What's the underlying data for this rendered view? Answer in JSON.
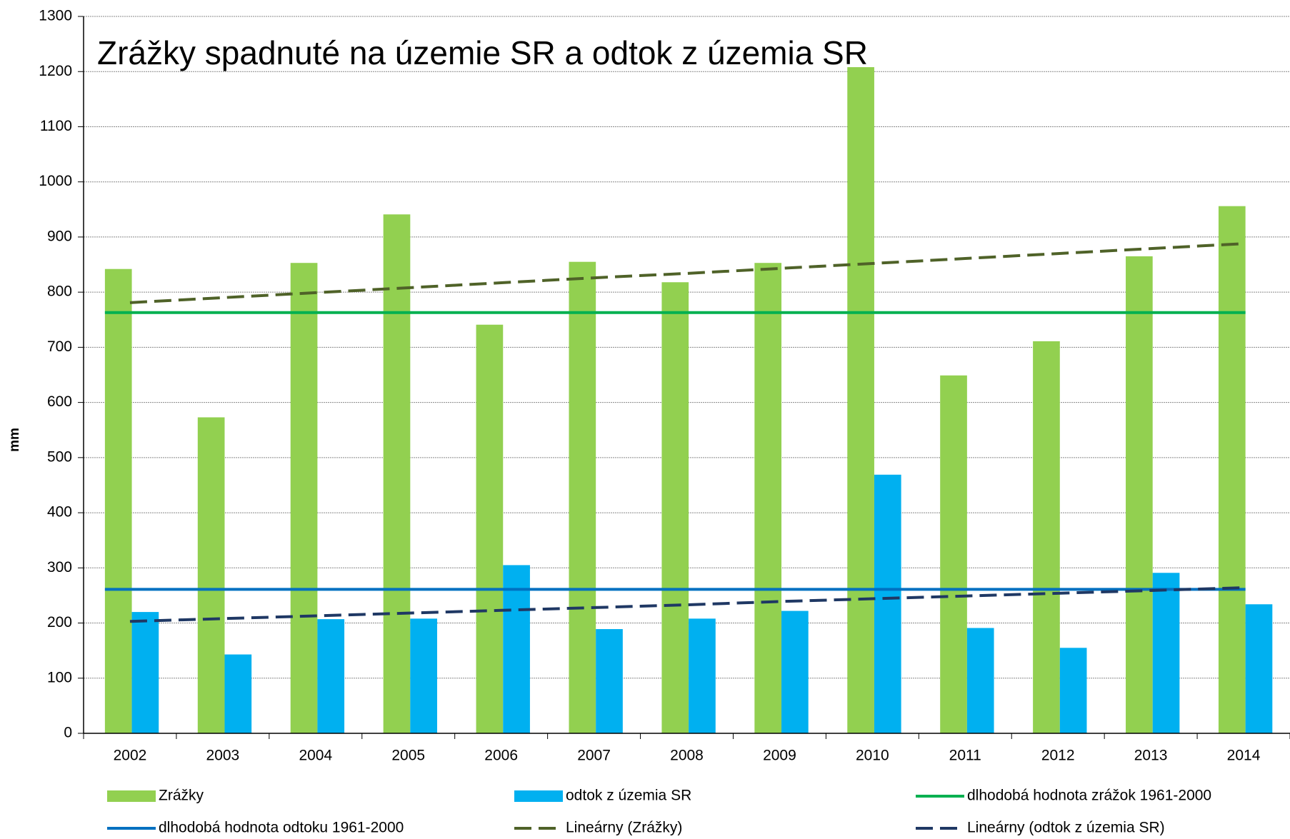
{
  "chart_data": {
    "type": "bar",
    "title": "Zrážky spadnuté na územie SR a odtok z územia SR",
    "ylabel": "mm",
    "categories": [
      "2002",
      "2003",
      "2004",
      "2005",
      "2006",
      "2007",
      "2008",
      "2009",
      "2010",
      "2011",
      "2012",
      "2013",
      "2014"
    ],
    "series": [
      {
        "name": "Zrážky",
        "type": "bar",
        "color": "#92d050",
        "values": [
          842,
          573,
          853,
          941,
          741,
          855,
          818,
          853,
          1208,
          649,
          711,
          865,
          956
        ]
      },
      {
        "name": "odtok z územia SR",
        "type": "bar",
        "color": "#00b0f0",
        "values": [
          220,
          143,
          207,
          208,
          305,
          189,
          208,
          222,
          469,
          191,
          155,
          291,
          234
        ]
      },
      {
        "name": "dlhodobá hodnota zrážok 1961-2000",
        "type": "hline",
        "color": "#00b050",
        "value": 763
      },
      {
        "name": "dlhodobá hodnota odtoku 1961-2000",
        "type": "hline",
        "color": "#0070c0",
        "value": 261
      },
      {
        "name": "Lineárny (Zrážky)",
        "type": "trend",
        "color": "#4f6228",
        "values": [
          781,
          790,
          799,
          808,
          817,
          826,
          834,
          843,
          852,
          861,
          870,
          879,
          888
        ]
      },
      {
        "name": "Lineárny (odtok z územia SR)",
        "type": "trend",
        "color": "#1f3864",
        "values": [
          203,
          208,
          213,
          218,
          223,
          228,
          233,
          239,
          244,
          249,
          254,
          259,
          264
        ]
      }
    ],
    "ylim": [
      0,
      1300
    ],
    "yticks": [
      0,
      100,
      200,
      300,
      400,
      500,
      600,
      700,
      800,
      900,
      1000,
      1100,
      1200,
      1300
    ],
    "grid": true
  }
}
